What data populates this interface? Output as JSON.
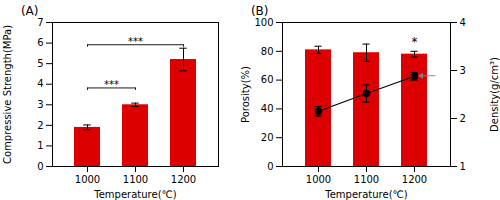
{
  "chart_data": [
    {
      "type": "bar",
      "title": "(A)",
      "categories": [
        "1000",
        "1100",
        "1200"
      ],
      "values": [
        1.9,
        3.0,
        5.2
      ],
      "errors": [
        0.12,
        0.08,
        0.55
      ],
      "color": "#dd0000",
      "xlabel": "Temperature(℃)",
      "ylabel": "Compressive Strength(MPa)",
      "ylim": [
        0,
        7
      ],
      "yticks": [
        0,
        1,
        2,
        3,
        4,
        5,
        6,
        7
      ],
      "annotations": [
        {
          "text": "***",
          "x": [
            "1000",
            "1100"
          ],
          "y": 3.7
        },
        {
          "text": "***",
          "x": [
            "1000",
            "1200"
          ],
          "y": 5.8
        }
      ]
    },
    {
      "type": "bar",
      "title": "(B)",
      "categories": [
        "1000",
        "1100",
        "1200"
      ],
      "series": [
        {
          "type": "bar",
          "values": [
            81,
            79,
            78
          ],
          "errors": [
            2.5,
            6.0,
            2.0
          ],
          "color": "#dd0000"
        },
        {
          "type": "line",
          "axis": "y2",
          "values": [
            2.15,
            2.52,
            2.88
          ],
          "errors": [
            0.1,
            0.18,
            0.08
          ],
          "color": "#000000",
          "marker": "circle",
          "line_style": "solid"
        }
      ],
      "xlabel": "Temperature(℃)",
      "ylabel": "Porosity(%)",
      "y2label": "Density(g/cm³)",
      "ylim": [
        0,
        100
      ],
      "yticks": [
        0,
        20,
        40,
        60,
        80,
        100
      ],
      "y2lim": [
        1,
        4
      ],
      "y2ticks": [
        1,
        2,
        3,
        4
      ],
      "annotations": [
        {
          "text": "*",
          "x": "1200",
          "y": 83.5
        },
        {
          "type": "arrow",
          "x": "1200",
          "y": 2.88,
          "axis": "y2",
          "color": "gray"
        }
      ]
    }
  ]
}
